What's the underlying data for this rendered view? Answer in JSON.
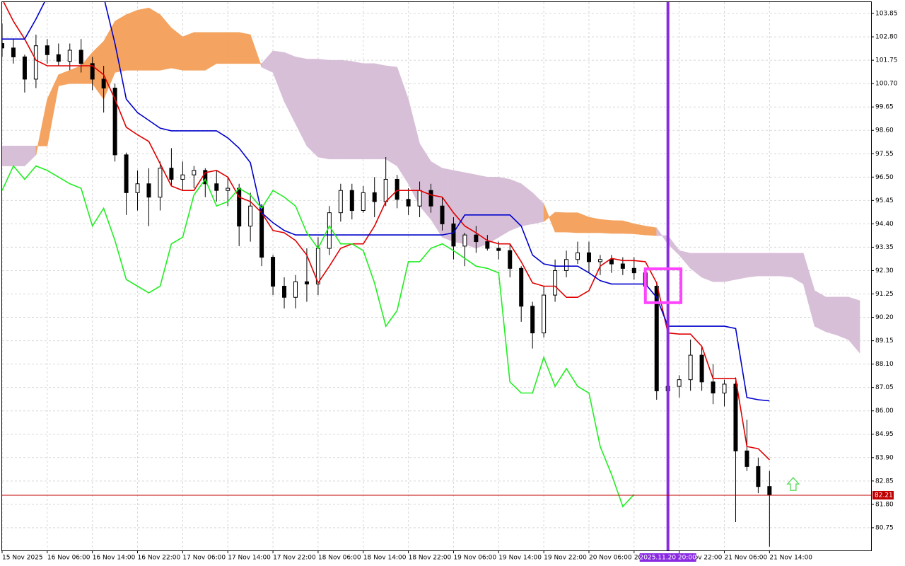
{
  "chart_data": {
    "type": "candlestick",
    "grid": true,
    "xlim": [
      0,
      77
    ],
    "ylim": [
      79.73,
      104.36
    ],
    "xticks": [
      {
        "value": 0,
        "label": "15 Nov 2025"
      },
      {
        "value": 4,
        "label": "16 Nov 06:00"
      },
      {
        "value": 8,
        "label": "16 Nov 14:00"
      },
      {
        "value": 12,
        "label": "16 Nov 22:00"
      },
      {
        "value": 16,
        "label": "17 Nov 06:00"
      },
      {
        "value": 20,
        "label": "17 Nov 14:00"
      },
      {
        "value": 24,
        "label": "17 Nov 22:00"
      },
      {
        "value": 28,
        "label": "18 Nov 06:00"
      },
      {
        "value": 32,
        "label": "18 Nov 14:00"
      },
      {
        "value": 36,
        "label": "18 Nov 22:00"
      },
      {
        "value": 40,
        "label": "19 Nov 06:00"
      },
      {
        "value": 44,
        "label": "19 Nov 14:00"
      },
      {
        "value": 48,
        "label": "19 Nov 22:00"
      },
      {
        "value": 52,
        "label": "20 Nov 06:00"
      },
      {
        "value": 56,
        "label": "20 Nov 14:00"
      },
      {
        "value": 60,
        "label": "20 Nov 22:00"
      },
      {
        "value": 64,
        "label": "21 Nov 06:00"
      },
      {
        "value": 68,
        "label": "21 Nov 14:00"
      }
    ],
    "yticks": [
      103.85,
      {
        "value": 102.8,
        "label": "102.80"
      },
      101.75,
      {
        "value": 100.7,
        "label": "100.70"
      },
      99.65,
      {
        "value": 98.6,
        "label": "98.60"
      },
      97.55,
      {
        "value": 96.5,
        "label": "96.50"
      },
      95.45,
      {
        "value": 94.4,
        "label": "94.40"
      },
      93.35,
      {
        "value": 92.3,
        "label": "92.30"
      },
      91.25,
      {
        "value": 90.2,
        "label": "90.20"
      },
      89.15,
      {
        "value": 88.1,
        "label": "88.10"
      },
      87.05,
      {
        "value": 86.0,
        "label": "86.00"
      },
      84.95,
      {
        "value": 83.9,
        "label": "83.90"
      },
      82.85,
      {
        "value": 81.8,
        "label": "81.80"
      },
      80.75
    ],
    "bull_color": "#ffffff",
    "bear_color": "#000000",
    "open": [
      102.5,
      102.3,
      101.9,
      100.9,
      102.4,
      102.0,
      101.7,
      102.2,
      101.6,
      100.9,
      100.5,
      97.5,
      95.8,
      96.2,
      95.6,
      96.9,
      96.4,
      96.6,
      96.8,
      96.2,
      95.9,
      96.0,
      94.3,
      95.2,
      92.9,
      91.6,
      91.1,
      91.8,
      91.7,
      93.3,
      94.9,
      95.9,
      95.0,
      95.8,
      95.4,
      96.4,
      95.5,
      95.2,
      95.9,
      95.2,
      94.4,
      93.4,
      93.9,
      93.6,
      93.3,
      93.2,
      92.4,
      90.7,
      89.5,
      91.2,
      92.3,
      92.8,
      93.1,
      92.7,
      92.8,
      92.6,
      92.4,
      92.2,
      91.6,
      86.9,
      87.1,
      87.4,
      88.5,
      87.3,
      86.8,
      87.2,
      84.2,
      83.5,
      82.6
    ],
    "high": [
      103.4,
      102.7,
      102.0,
      102.9,
      102.7,
      102.5,
      102.5,
      102.7,
      101.9,
      101.5,
      100.7,
      97.6,
      96.8,
      96.9,
      97.2,
      97.8,
      97.2,
      97.0,
      96.9,
      96.8,
      96.5,
      96.2,
      95.8,
      95.3,
      93.0,
      92.0,
      92.1,
      93.3,
      93.8,
      95.2,
      96.2,
      96.2,
      96.1,
      96.5,
      97.4,
      96.6,
      96.0,
      96.3,
      96.2,
      95.6,
      94.7,
      94.0,
      94.3,
      93.9,
      93.6,
      93.5,
      92.5,
      90.9,
      91.6,
      92.8,
      93.2,
      93.6,
      93.6,
      93.0,
      93.0,
      92.9,
      92.9,
      92.4,
      91.8,
      87.9,
      87.6,
      89.2,
      88.9,
      88.1,
      87.4,
      87.5,
      85.6,
      83.9,
      83.3
    ],
    "low": [
      101.9,
      101.6,
      100.3,
      100.5,
      101.6,
      101.5,
      101.3,
      101.2,
      100.4,
      99.4,
      97.2,
      94.8,
      95.0,
      94.3,
      95.0,
      96.1,
      95.9,
      96.0,
      95.6,
      95.4,
      95.2,
      93.4,
      93.6,
      92.5,
      91.2,
      90.6,
      90.6,
      90.9,
      91.2,
      93.0,
      94.5,
      94.6,
      94.9,
      94.7,
      95.2,
      95.1,
      94.8,
      94.7,
      94.9,
      94.1,
      92.8,
      92.5,
      93.1,
      93.2,
      92.8,
      92.0,
      90.0,
      88.8,
      89.3,
      90.9,
      92.0,
      92.6,
      92.2,
      92.1,
      92.2,
      92.1,
      91.9,
      91.3,
      86.5,
      86.3,
      86.6,
      86.9,
      86.9,
      86.3,
      86.2,
      81.0,
      83.3,
      82.3,
      79.9
    ],
    "close": [
      102.3,
      101.9,
      100.9,
      102.4,
      102.0,
      101.7,
      102.2,
      101.6,
      100.9,
      100.5,
      97.5,
      95.8,
      96.2,
      95.6,
      96.9,
      96.4,
      96.6,
      96.8,
      96.2,
      95.9,
      96.0,
      94.3,
      95.2,
      92.9,
      91.6,
      91.1,
      91.8,
      91.7,
      93.3,
      94.9,
      95.9,
      95.0,
      95.8,
      95.4,
      96.4,
      95.5,
      95.2,
      95.9,
      95.2,
      94.4,
      93.4,
      93.9,
      93.6,
      93.3,
      93.2,
      92.4,
      90.7,
      89.5,
      91.2,
      92.3,
      92.8,
      93.1,
      92.7,
      92.8,
      92.6,
      92.4,
      92.2,
      91.6,
      86.9,
      87.1,
      87.4,
      88.5,
      87.3,
      86.8,
      87.2,
      84.2,
      83.5,
      82.6,
      82.21
    ],
    "lines": [
      {
        "color": "#e00000",
        "values": [
          104.5,
          103.5,
          102.7,
          101.75,
          101.5,
          101.5,
          101.5,
          101.5,
          101.5,
          101.1,
          100.0,
          98.74,
          98.4,
          98.1,
          97.1,
          96.1,
          95.9,
          95.9,
          96.7,
          96.8,
          96.5,
          95.6,
          95.4,
          94.9,
          94.1,
          94.0,
          93.65,
          93.0,
          91.75,
          92.5,
          93.3,
          93.5,
          93.5,
          94.3,
          95.4,
          95.9,
          95.9,
          95.9,
          95.7,
          95.6,
          94.9,
          94.3,
          94.0,
          93.65,
          93.5,
          93.5,
          92.7,
          91.75,
          91.6,
          91.6,
          91.1,
          91.1,
          91.4,
          92.5,
          92.85,
          92.75,
          92.75,
          92.7,
          91.75,
          89.5,
          89.45,
          89.45,
          88.9,
          87.45,
          87.45,
          87.45,
          84.4,
          84.3,
          83.8
        ]
      },
      {
        "color": "#0000cc",
        "values": [
          102.7,
          102.7,
          102.7,
          103.6,
          104.6,
          104.6,
          104.6,
          104.6,
          104.6,
          104.6,
          102.5,
          100.0,
          99.4,
          99.05,
          98.7,
          98.58,
          98.58,
          98.58,
          98.58,
          98.58,
          98.26,
          97.8,
          97.15,
          94.9,
          94.45,
          94.1,
          93.9,
          93.9,
          93.9,
          93.9,
          93.9,
          93.9,
          93.9,
          93.9,
          93.9,
          93.9,
          93.9,
          93.9,
          93.9,
          93.9,
          94.0,
          94.8,
          94.8,
          94.8,
          94.8,
          94.8,
          94.3,
          93.0,
          92.6,
          92.5,
          92.5,
          92.5,
          92.2,
          91.85,
          91.7,
          91.7,
          91.7,
          91.7,
          91.1,
          89.8,
          89.8,
          89.8,
          89.8,
          89.8,
          89.8,
          89.7,
          86.6,
          86.5,
          86.45
        ]
      },
      {
        "color": "#22ee22",
        "values": [
          95.9,
          97.0,
          96.4,
          97.0,
          96.8,
          96.5,
          96.2,
          96.0,
          94.3,
          95.1,
          93.65,
          91.9,
          91.6,
          91.3,
          91.6,
          93.5,
          93.8,
          95.7,
          96.4,
          95.2,
          95.4,
          96.0,
          95.7,
          95.1,
          95.9,
          95.6,
          95.2,
          94.0,
          93.3,
          94.3,
          93.5,
          93.5,
          93.2,
          91.75,
          89.8,
          90.5,
          92.7,
          92.7,
          93.3,
          93.5,
          93.2,
          92.85,
          92.5,
          92.4,
          92.2,
          87.3,
          86.8,
          86.8,
          88.4,
          87.1,
          87.9,
          87.1,
          86.8,
          84.4,
          83.15,
          81.7,
          82.25,
          null,
          null,
          null,
          null,
          null,
          null,
          null,
          null,
          null,
          null,
          null,
          null
        ]
      }
    ],
    "cloud": {
      "bull_color": "#f4a460",
      "bear_color": "#d8bfd8",
      "span_a": [
        97.0,
        97.0,
        97.0,
        97.5,
        100.0,
        101.1,
        101.3,
        101.5,
        102.1,
        102.6,
        103.5,
        103.8,
        104.0,
        104.1,
        103.8,
        103.2,
        102.8,
        103.0,
        103.0,
        103.0,
        103.0,
        103.0,
        102.9,
        101.44,
        101.2,
        99.9,
        98.9,
        97.9,
        97.4,
        97.31,
        97.31,
        97.31,
        97.31,
        97.31,
        97.31,
        97.0,
        96.2,
        95.2,
        94.6,
        93.8,
        93.6,
        93.5,
        93.3,
        93.5,
        93.8,
        94.1,
        94.3,
        94.4,
        94.5,
        94.92,
        94.9,
        94.9,
        94.7,
        94.6,
        94.55,
        94.54,
        94.4,
        94.3,
        94.22,
        93.49,
        93.0,
        92.4,
        92.0,
        91.8,
        91.8,
        91.9,
        92.0,
        92.06,
        92.06,
        92.06,
        92.0,
        91.7,
        89.8,
        89.55,
        89.4,
        89.2,
        88.6
      ],
      "span_b": [
        97.9,
        97.9,
        97.9,
        97.9,
        97.9,
        100.6,
        100.7,
        100.7,
        100.7,
        100.0,
        101.2,
        101.3,
        101.3,
        101.3,
        101.3,
        101.4,
        101.3,
        101.3,
        101.3,
        101.6,
        101.6,
        101.6,
        101.6,
        101.6,
        102.17,
        102.1,
        101.9,
        101.8,
        101.8,
        101.75,
        101.75,
        101.7,
        101.6,
        101.6,
        101.5,
        101.44,
        100.0,
        98.0,
        97.2,
        96.9,
        96.8,
        96.7,
        96.6,
        96.5,
        96.5,
        96.4,
        96.2,
        95.8,
        95.3,
        94.03,
        94.03,
        94.0,
        94.0,
        94.0,
        93.97,
        93.97,
        93.95,
        93.9,
        93.87,
        93.87,
        93.2,
        93.08,
        93.08,
        93.08,
        93.08,
        93.08,
        93.08,
        93.08,
        93.08,
        93.08,
        93.08,
        93.08,
        91.4,
        91.11,
        91.11,
        91.11,
        90.95
      ]
    },
    "current_price": {
      "value": 82.21,
      "color": "#c00000"
    },
    "vertical_line": {
      "x": 59,
      "label": "2025.11.20 20:00",
      "color": "#8a2be2"
    },
    "highlight_box": {
      "x": [
        57.0,
        60.15
      ],
      "y": [
        90.86,
        92.38
      ],
      "color": "#ff44ff"
    },
    "signal_arrow": {
      "x": 70.1,
      "y": 83.0,
      "color": "#66dd66"
    }
  }
}
